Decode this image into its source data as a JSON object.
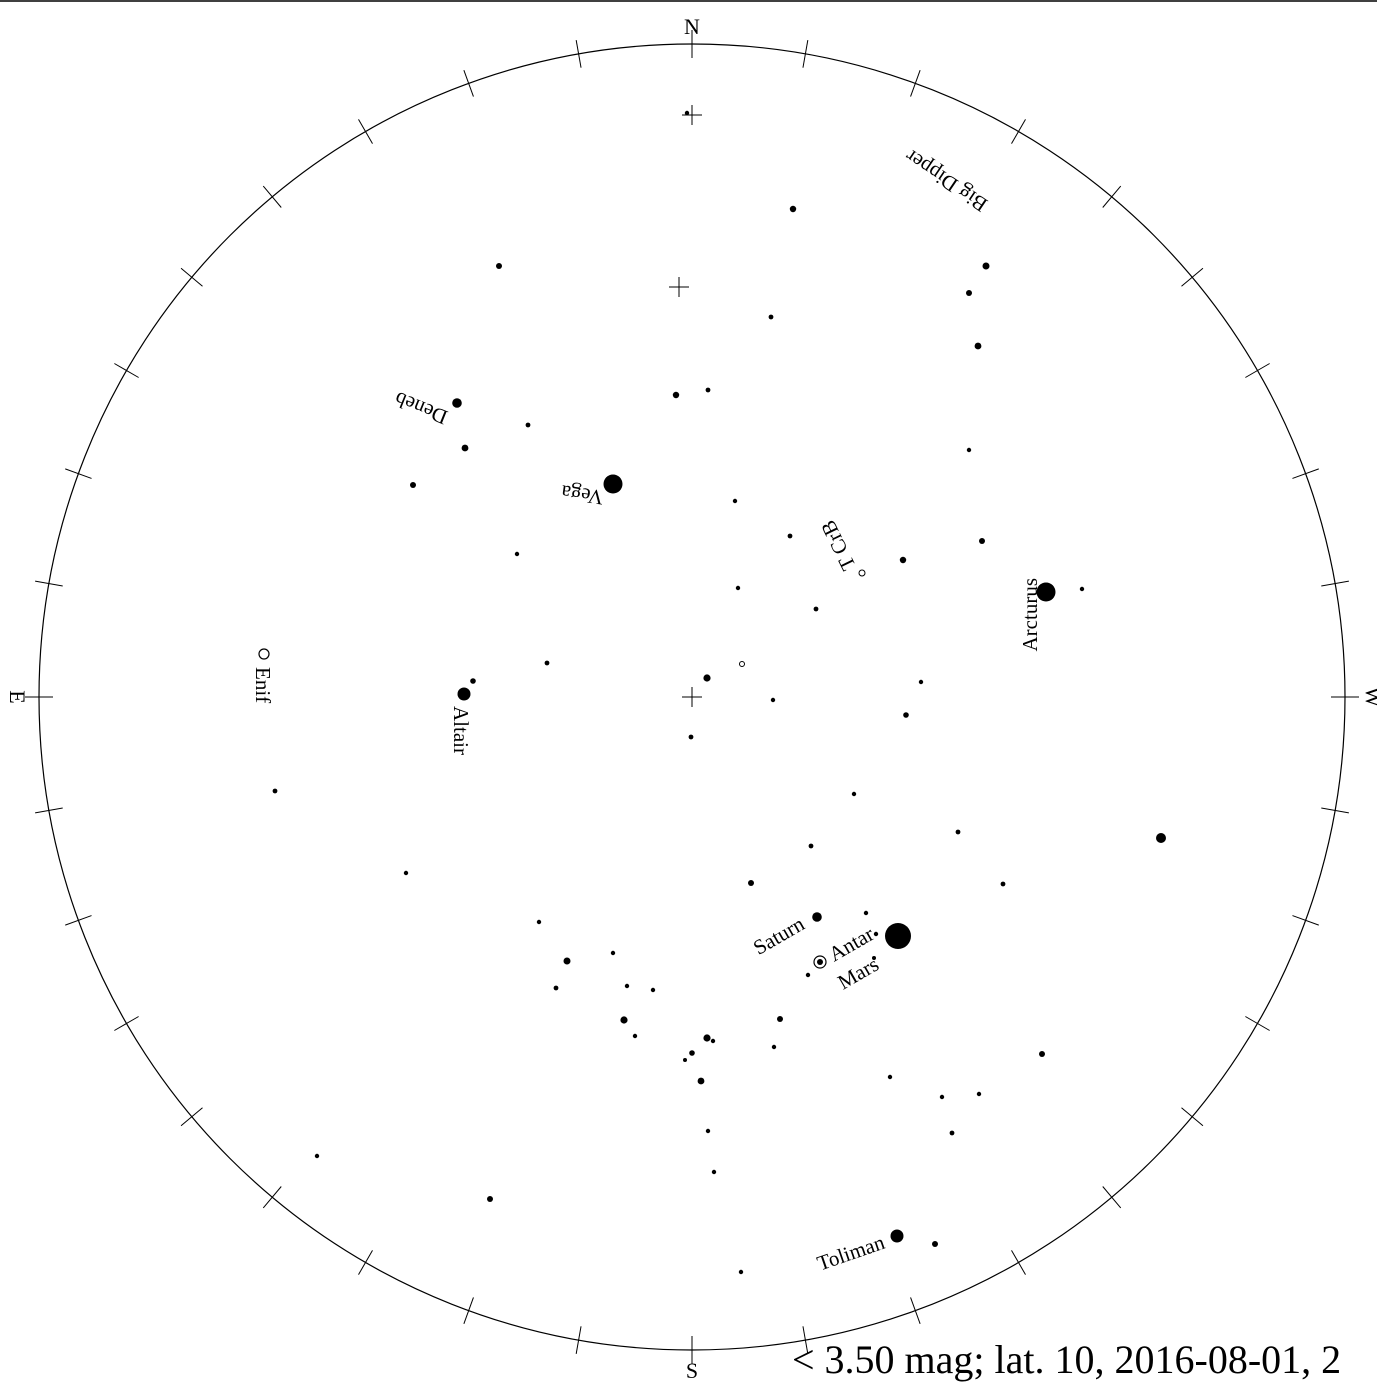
{
  "caption": "< 3.50 mag; lat. 10, 2016-08-01, 2",
  "cardinals": {
    "north": "N",
    "south": "S",
    "east": "E",
    "west": "W"
  },
  "labels": {
    "big_dipper": "Big Dipper",
    "deneb": "Deneb",
    "vega": "Vega",
    "t_crb": "T CrB",
    "arcturus": "Arcturus",
    "enif": "Enif",
    "altair": "Altair",
    "saturn": "Saturn",
    "antares": "Antar",
    "mars": "Mars",
    "toliman": "Toliman"
  },
  "colors": {
    "ink": "#000000",
    "background": "#ffffff"
  }
}
